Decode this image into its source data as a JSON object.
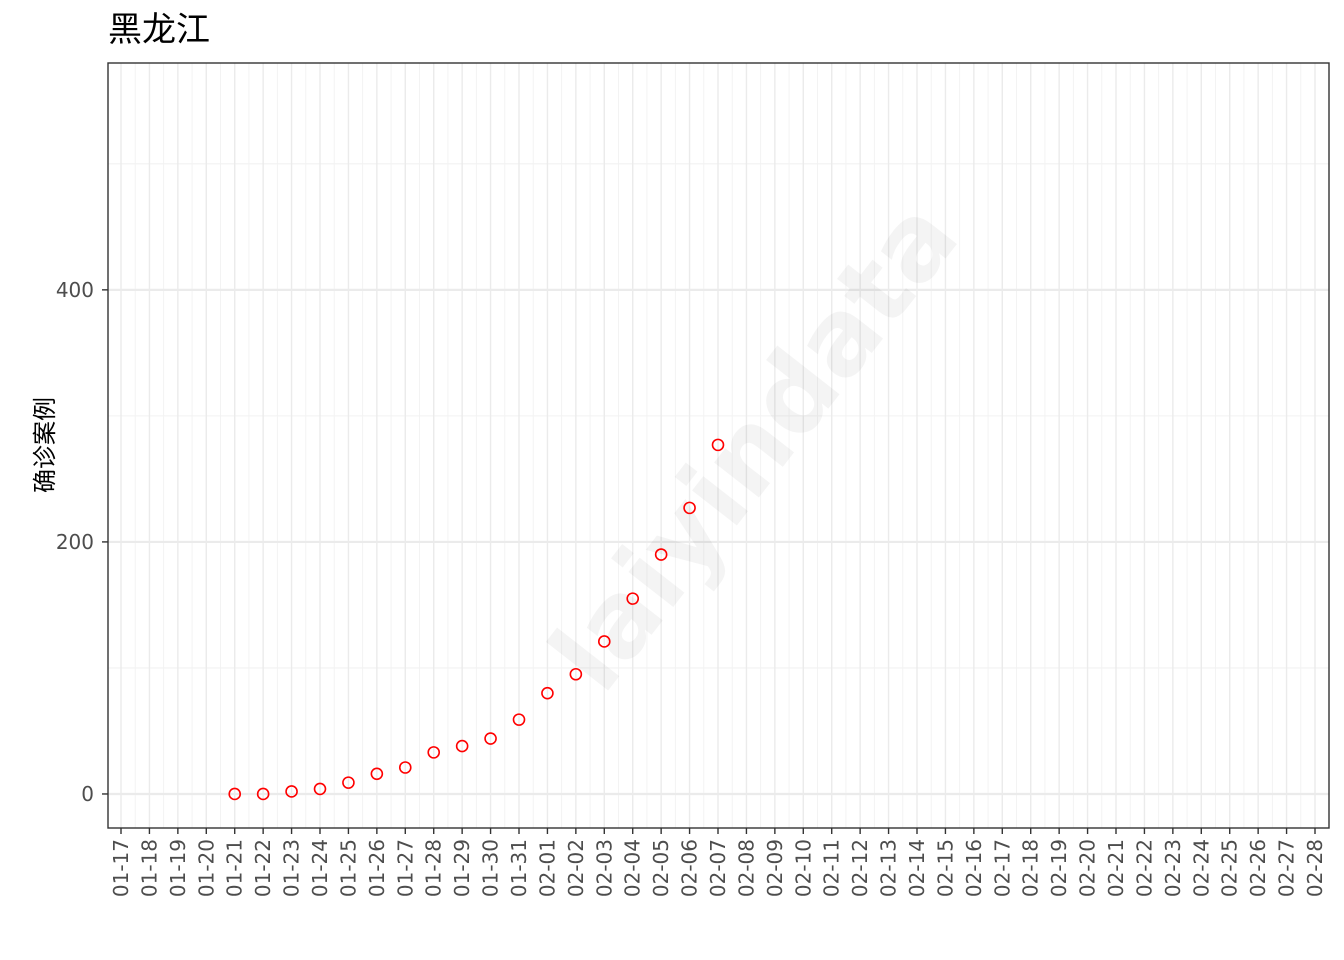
{
  "chart_data": {
    "type": "scatter",
    "title": "黑龙江",
    "xlabel": "",
    "ylabel": "确诊案例",
    "watermark": "laiyindata",
    "x_categories": [
      "01-17",
      "01-18",
      "01-19",
      "01-20",
      "01-21",
      "01-22",
      "01-23",
      "01-24",
      "01-25",
      "01-26",
      "01-27",
      "01-28",
      "01-29",
      "01-30",
      "01-31",
      "02-01",
      "02-02",
      "02-03",
      "02-04",
      "02-05",
      "02-06",
      "02-07",
      "02-08",
      "02-09",
      "02-10",
      "02-11",
      "02-12",
      "02-13",
      "02-14",
      "02-15",
      "02-16",
      "02-17",
      "02-18",
      "02-19",
      "02-20",
      "02-21",
      "02-22",
      "02-23",
      "02-24",
      "02-25",
      "02-26",
      "02-27",
      "02-28"
    ],
    "ylim": [
      -27,
      580
    ],
    "y_ticks": [
      0,
      200,
      400
    ],
    "y_tick_labels": [
      "0",
      "200",
      "400"
    ],
    "grid": true,
    "point_color": "#ff0000",
    "points": [
      {
        "x": "01-21",
        "y": 0
      },
      {
        "x": "01-22",
        "y": 0
      },
      {
        "x": "01-23",
        "y": 2
      },
      {
        "x": "01-24",
        "y": 4
      },
      {
        "x": "01-25",
        "y": 9
      },
      {
        "x": "01-26",
        "y": 16
      },
      {
        "x": "01-27",
        "y": 21
      },
      {
        "x": "01-28",
        "y": 33
      },
      {
        "x": "01-29",
        "y": 38
      },
      {
        "x": "01-30",
        "y": 44
      },
      {
        "x": "01-31",
        "y": 59
      },
      {
        "x": "02-01",
        "y": 80
      },
      {
        "x": "02-02",
        "y": 95
      },
      {
        "x": "02-03",
        "y": 121
      },
      {
        "x": "02-04",
        "y": 155
      },
      {
        "x": "02-05",
        "y": 190
      },
      {
        "x": "02-06",
        "y": 227
      },
      {
        "x": "02-07",
        "y": 277
      }
    ]
  }
}
